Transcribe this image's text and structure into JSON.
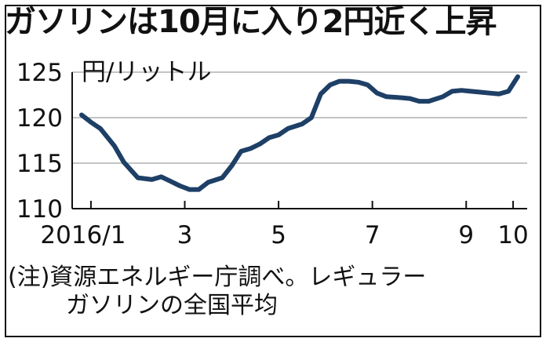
{
  "title": "ガソリンは10月に入り2円近く上昇",
  "note_line1": "(注)資源エネルギー庁調べ。レギュラー",
  "note_line2": "ガソリンの全国平均",
  "colors": {
    "line": "#1e3f66",
    "axis": "#111111",
    "grid": "#b0b0b0"
  },
  "chart_data": {
    "type": "line",
    "title": "ガソリンは10月に入り2円近く上昇",
    "ylabel": "円/リットル",
    "xlabel": "",
    "ylim": [
      110,
      125
    ],
    "yticks": [
      110,
      115,
      120,
      125
    ],
    "grid": "horizontal",
    "x_tick_labels": [
      {
        "x": 1,
        "label": "2016/1"
      },
      {
        "x": 3,
        "label": "3"
      },
      {
        "x": 5,
        "label": "5"
      },
      {
        "x": 7,
        "label": "7"
      },
      {
        "x": 9,
        "label": "9"
      },
      {
        "x": 10,
        "label": "10"
      }
    ],
    "series": [
      {
        "x": [
          0.8,
          1.0,
          1.2,
          1.5,
          1.7,
          2.0,
          2.3,
          2.5,
          2.7,
          2.9,
          3.1,
          3.3,
          3.5,
          3.8,
          4.0,
          4.2,
          4.4,
          4.6,
          4.8,
          5.0,
          5.2,
          5.5,
          5.7,
          5.9,
          6.1,
          6.3,
          6.5,
          6.7,
          6.9,
          7.1,
          7.3,
          7.6,
          7.8,
          8.0,
          8.2,
          8.5,
          8.7,
          8.9,
          9.1,
          9.3,
          9.5,
          9.7,
          9.9,
          10.1
        ],
        "values": [
          120.3,
          119.5,
          118.8,
          116.9,
          115.1,
          113.4,
          113.2,
          113.5,
          113.0,
          112.5,
          112.1,
          112.1,
          112.9,
          113.4,
          114.7,
          116.3,
          116.6,
          117.1,
          117.8,
          118.1,
          118.8,
          119.3,
          120.0,
          122.6,
          123.6,
          124.0,
          124.0,
          123.9,
          123.6,
          122.7,
          122.3,
          122.2,
          122.1,
          121.8,
          121.8,
          122.3,
          122.9,
          123.0,
          122.9,
          122.8,
          122.7,
          122.6,
          122.9,
          124.5
        ]
      }
    ]
  }
}
